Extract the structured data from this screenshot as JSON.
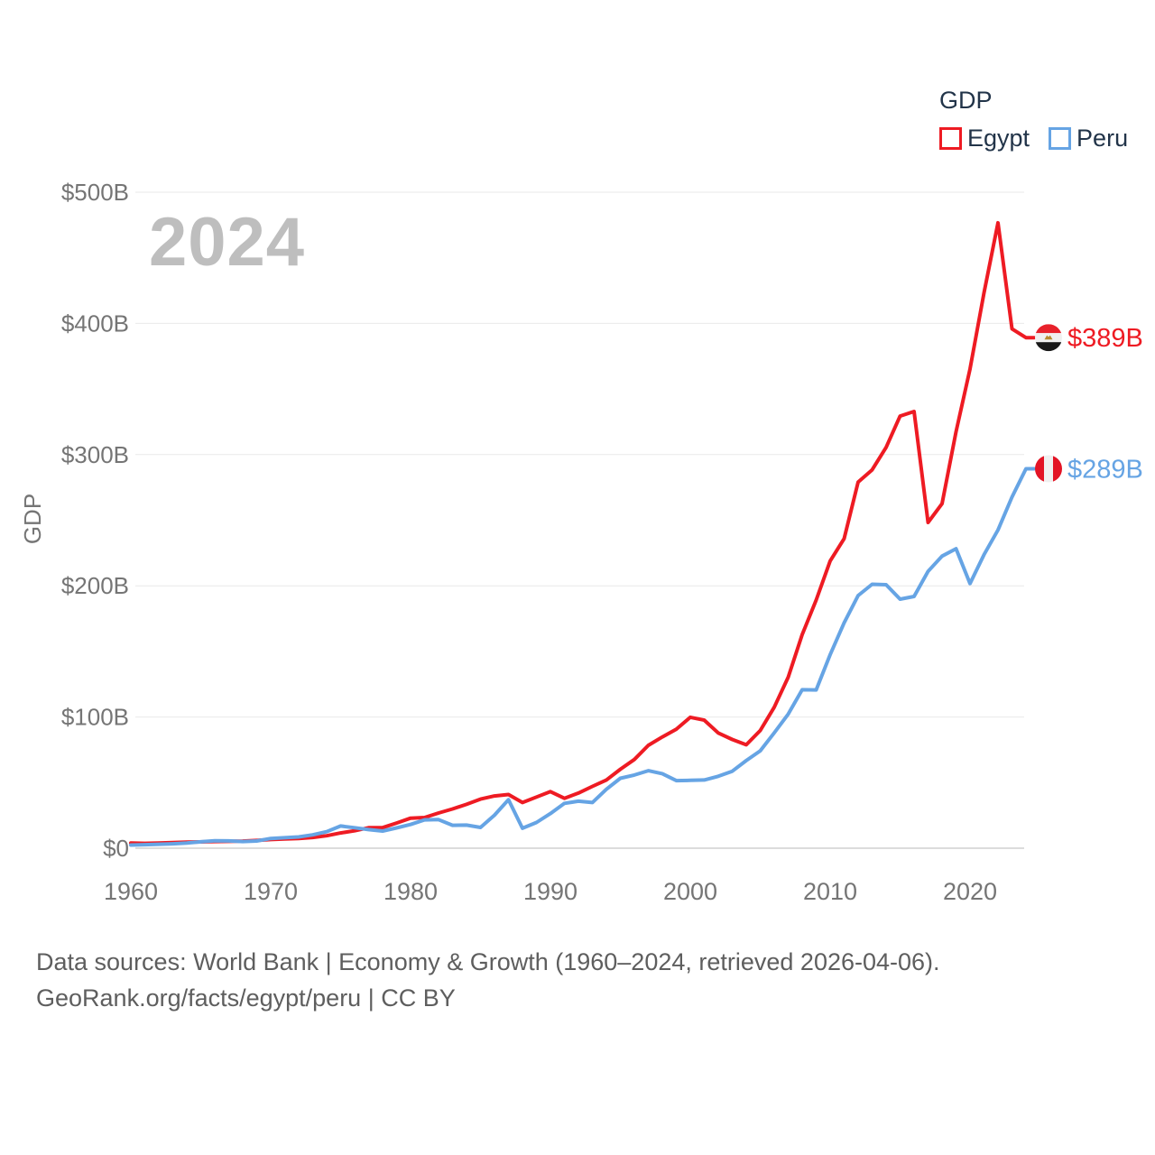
{
  "legend": {
    "title": "GDP",
    "items": [
      {
        "label": "Egypt",
        "color": "#ee1b23"
      },
      {
        "label": "Peru",
        "color": "#66a4e4"
      }
    ]
  },
  "watermark": "2024",
  "axis": {
    "y_title": "GDP",
    "y_ticks": [
      "$0",
      "$100B",
      "$200B",
      "$300B",
      "$400B",
      "$500B"
    ],
    "x_ticks": [
      "1960",
      "1970",
      "1980",
      "1990",
      "2000",
      "2010",
      "2020"
    ]
  },
  "end_labels": [
    {
      "series": "Egypt",
      "text": "$389B",
      "flag": "egypt-flag-icon"
    },
    {
      "series": "Peru",
      "text": "$289B",
      "flag": "peru-flag-icon"
    }
  ],
  "footer": {
    "line1": "Data sources: World Bank | Economy & Growth (1960–2024, retrieved 2026-04-06).",
    "line2": "GeoRank.org/facts/egypt/peru | CC BY"
  },
  "chart_data": {
    "type": "line",
    "title": "GDP of Egypt and Peru, 1960-2024, current US$ billions",
    "xlabel": "",
    "ylabel": "GDP",
    "xlim": [
      1960,
      2024
    ],
    "ylim": [
      0,
      500
    ],
    "grid": true,
    "legend_position": "top-right",
    "x_tick_values": [
      1960,
      1970,
      1980,
      1990,
      2000,
      2010,
      2020
    ],
    "y_tick_values": [
      0,
      100,
      200,
      300,
      400,
      500
    ],
    "x": [
      1960,
      1961,
      1962,
      1963,
      1964,
      1965,
      1966,
      1967,
      1968,
      1969,
      1970,
      1971,
      1972,
      1973,
      1974,
      1975,
      1976,
      1977,
      1978,
      1979,
      1980,
      1981,
      1982,
      1983,
      1984,
      1985,
      1986,
      1987,
      1988,
      1989,
      1990,
      1991,
      1992,
      1993,
      1994,
      1995,
      1996,
      1997,
      1998,
      1999,
      2000,
      2001,
      2002,
      2003,
      2004,
      2005,
      2006,
      2007,
      2008,
      2009,
      2010,
      2011,
      2012,
      2013,
      2014,
      2015,
      2016,
      2017,
      2018,
      2019,
      2020,
      2021,
      2022,
      2023,
      2024
    ],
    "series": [
      {
        "name": "Egypt",
        "color": "#ee1b23",
        "values": [
          3.9,
          3.7,
          4.0,
          4.3,
          4.7,
          4.8,
          5.1,
          5.2,
          5.4,
          5.9,
          6.6,
          7.0,
          7.4,
          8.2,
          9.5,
          11.6,
          13.3,
          15.6,
          15.7,
          19.2,
          22.9,
          23.4,
          26.8,
          29.9,
          33.4,
          37.4,
          39.8,
          40.9,
          34.8,
          39.0,
          43.1,
          38.0,
          42.0,
          47.1,
          52.0,
          60.2,
          67.6,
          78.4,
          84.8,
          90.7,
          99.8,
          97.6,
          87.8,
          82.9,
          78.8,
          89.7,
          107.4,
          130.3,
          162.8,
          189.1,
          218.9,
          236.0,
          279.1,
          288.4,
          305.5,
          329.4,
          332.9,
          248.3,
          262.6,
          317.4,
          365.3,
          423.3,
          476.7,
          395.9,
          389.1
        ]
      },
      {
        "name": "Peru",
        "color": "#66a4e4",
        "values": [
          2.4,
          2.7,
          3.0,
          3.4,
          3.9,
          4.9,
          5.7,
          5.6,
          5.1,
          5.5,
          7.4,
          8.0,
          8.6,
          10.2,
          12.6,
          16.9,
          15.6,
          14.2,
          13.1,
          15.5,
          18.1,
          21.6,
          21.8,
          17.5,
          17.6,
          15.8,
          25.2,
          37.0,
          15.2,
          19.6,
          26.4,
          34.2,
          35.8,
          34.8,
          44.9,
          53.3,
          55.8,
          59.1,
          56.8,
          51.5,
          51.7,
          52.0,
          54.8,
          58.7,
          66.8,
          74.2,
          87.9,
          102.2,
          120.8,
          120.6,
          147.5,
          171.8,
          192.6,
          201.2,
          200.8,
          189.8,
          191.9,
          211.0,
          222.6,
          228.3,
          201.7,
          223.7,
          242.6,
          267.6,
          289.2
        ]
      }
    ]
  }
}
